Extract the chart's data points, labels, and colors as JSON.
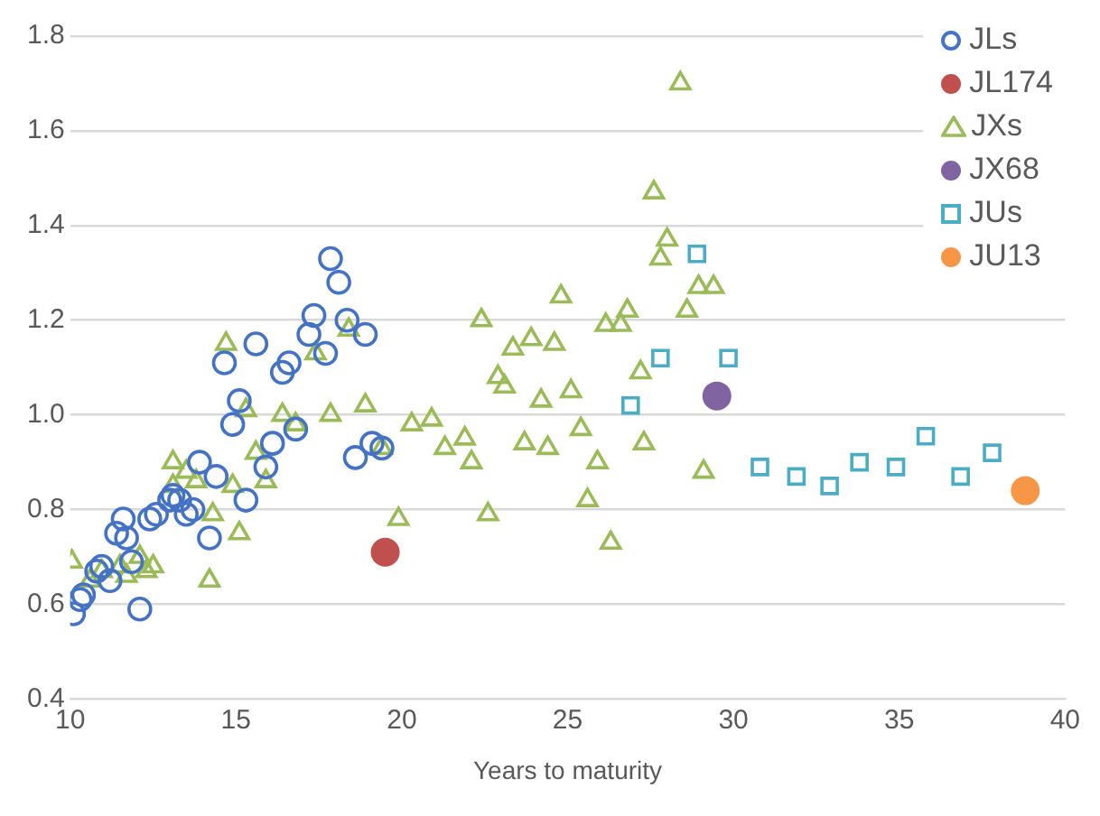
{
  "chart_data": {
    "type": "scatter",
    "xlabel": "Years to maturity",
    "xlim": [
      10,
      40
    ],
    "xticks": [
      10,
      15,
      20,
      25,
      30,
      35,
      40
    ],
    "ylim": [
      0.4,
      1.8
    ],
    "yticks": [
      {
        "value": 0.4,
        "label": "0.4"
      },
      {
        "value": 0.6,
        "label": "0.6"
      },
      {
        "value": 0.8,
        "label": "0.8"
      },
      {
        "value": 1.0,
        "label": "1.0"
      },
      {
        "value": 1.2,
        "label": "1.2"
      },
      {
        "value": 1.4,
        "label": "1.4"
      },
      {
        "value": 1.6,
        "label": "1.6"
      },
      {
        "value": 1.8,
        "label": "1.8"
      }
    ],
    "grid": "y",
    "legend": "top right",
    "series": [
      {
        "name": "JLs",
        "color": "#4472c4",
        "marker": "circle",
        "x": [
          10.1,
          10.3,
          10.4,
          10.8,
          10.95,
          11.2,
          11.4,
          11.6,
          11.7,
          11.85,
          12.1,
          12.4,
          12.6,
          13.0,
          13.1,
          13.3,
          13.5,
          13.7,
          13.9,
          14.2,
          14.4,
          14.65,
          14.9,
          15.1,
          15.3,
          15.6,
          15.9,
          16.1,
          16.4,
          16.6,
          16.8,
          17.2,
          17.35,
          17.7,
          17.85,
          18.1,
          18.35,
          18.6,
          18.9,
          19.1,
          19.4
        ],
        "values": [
          0.58,
          0.61,
          0.62,
          0.67,
          0.68,
          0.65,
          0.75,
          0.78,
          0.74,
          0.69,
          0.59,
          0.78,
          0.79,
          0.82,
          0.83,
          0.82,
          0.79,
          0.8,
          0.9,
          0.74,
          0.87,
          1.11,
          0.98,
          1.03,
          0.82,
          1.15,
          0.89,
          0.94,
          1.09,
          1.11,
          0.97,
          1.17,
          1.21,
          1.13,
          1.33,
          1.28,
          1.2,
          0.91,
          1.17,
          0.94,
          0.93
        ]
      },
      {
        "name": "JL174",
        "color": "#c0504d",
        "marker": "circle",
        "x": [
          19.5
        ],
        "values": [
          0.71
        ]
      },
      {
        "name": "JXs",
        "color": "#9bbb59",
        "marker": "triangle",
        "x": [
          10.05,
          10.6,
          10.95,
          11.5,
          11.7,
          12.1,
          12.3,
          12.5,
          13.1,
          13.1,
          13.5,
          13.8,
          14.2,
          14.3,
          14.7,
          14.9,
          15.1,
          15.3,
          15.6,
          15.9,
          16.4,
          16.8,
          17.4,
          17.85,
          18.4,
          18.9,
          19.4,
          19.9,
          20.3,
          20.9,
          21.3,
          21.9,
          22.1,
          22.4,
          22.6,
          22.9,
          23.1,
          23.35,
          23.7,
          23.9,
          24.2,
          24.4,
          24.6,
          24.8,
          25.1,
          25.4,
          25.6,
          25.9,
          26.15,
          26.3,
          26.6,
          26.8,
          27.2,
          27.3,
          27.6,
          27.8,
          28.0,
          28.4,
          28.6,
          28.95,
          29.1,
          29.4
        ],
        "values": [
          0.69,
          0.65,
          0.67,
          0.68,
          0.66,
          0.7,
          0.67,
          0.68,
          0.9,
          0.85,
          0.88,
          0.86,
          0.65,
          0.79,
          1.15,
          0.85,
          0.75,
          1.01,
          0.92,
          0.86,
          1.0,
          0.98,
          1.13,
          1.0,
          1.18,
          1.02,
          0.93,
          0.78,
          0.98,
          0.99,
          0.93,
          0.95,
          0.9,
          1.2,
          0.79,
          1.08,
          1.06,
          1.14,
          0.94,
          1.16,
          1.03,
          0.93,
          1.15,
          1.25,
          1.05,
          0.97,
          0.82,
          0.9,
          1.19,
          0.73,
          1.19,
          1.22,
          1.09,
          0.94,
          1.47,
          1.33,
          1.37,
          1.7,
          1.22,
          1.27,
          0.88,
          1.27
        ]
      },
      {
        "name": "JX68",
        "color": "#8064a2",
        "marker": "circle",
        "x": [
          29.5
        ],
        "values": [
          1.04
        ]
      },
      {
        "name": "JUs",
        "color": "#4bacc6",
        "marker": "square",
        "x": [
          26.9,
          27.8,
          28.9,
          29.85,
          30.8,
          31.9,
          32.9,
          33.8,
          34.9,
          35.8,
          36.85,
          37.8
        ],
        "values": [
          1.02,
          1.12,
          1.34,
          1.12,
          0.89,
          0.87,
          0.85,
          0.9,
          0.89,
          0.955,
          0.87,
          0.92
        ]
      },
      {
        "name": "JU13",
        "color": "#f79646",
        "marker": "circle",
        "x": [
          38.8
        ],
        "values": [
          0.84
        ]
      }
    ]
  }
}
